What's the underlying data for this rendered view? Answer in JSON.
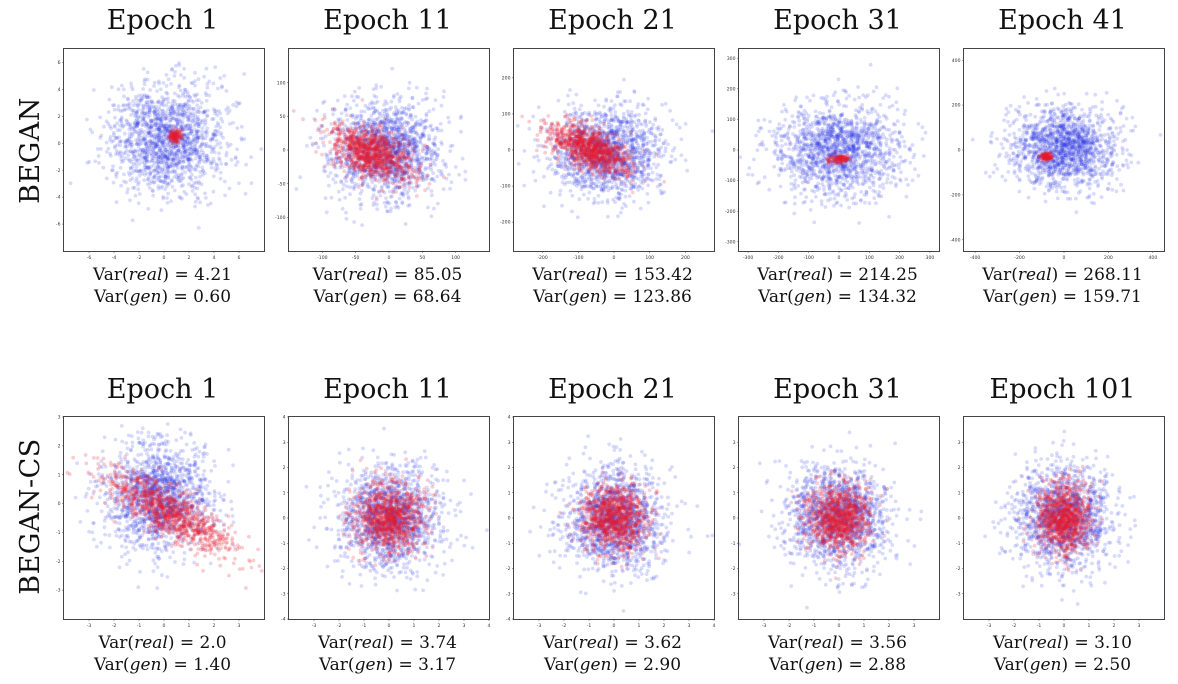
{
  "figure": {
    "rows": [
      {
        "label": "BEGAN"
      },
      {
        "label": "BEGAN-CS"
      }
    ]
  },
  "chart_data": [
    {
      "type": "scatter",
      "row": "BEGAN",
      "title": "Epoch 1",
      "var_real": "4.21",
      "var_gen": "0.60",
      "xlim": [
        -8,
        8
      ],
      "ylim": [
        -8,
        7
      ],
      "xticks": [
        -6,
        -4,
        -2,
        0,
        2,
        4,
        6
      ],
      "yticks": [
        -6,
        -4,
        -2,
        0,
        2,
        4,
        6
      ],
      "series": [
        {
          "color": "#2a35e6",
          "center": [
            0.2,
            0.3
          ],
          "spread": [
            2.3,
            2.0
          ]
        },
        {
          "color": "#e81c2c",
          "center": [
            0.9,
            0.5
          ],
          "spread": [
            0.25,
            0.25
          ]
        }
      ]
    },
    {
      "type": "scatter",
      "row": "BEGAN",
      "title": "Epoch 11",
      "var_real": "85.05",
      "var_gen": "68.64",
      "xlim": [
        -150,
        150
      ],
      "ylim": [
        -150,
        150
      ],
      "xticks": [
        -100,
        -50,
        0,
        50,
        100
      ],
      "yticks": [
        -100,
        -50,
        0,
        50,
        100
      ],
      "series": [
        {
          "color": "#2a35e6",
          "center": [
            -5,
            0
          ],
          "spread": [
            42,
            36
          ]
        },
        {
          "color": "#e81c2c",
          "center": [
            -25,
            -5
          ],
          "spread": [
            30,
            18
          ],
          "tilt": -0.3
        }
      ]
    },
    {
      "type": "scatter",
      "row": "BEGAN",
      "title": "Epoch 21",
      "var_real": "153.42",
      "var_gen": "123.86",
      "xlim": [
        -280,
        280
      ],
      "ylim": [
        -280,
        280
      ],
      "xticks": [
        -200,
        -100,
        0,
        100,
        200
      ],
      "yticks": [
        -200,
        -100,
        0,
        100,
        200
      ],
      "series": [
        {
          "color": "#2a35e6",
          "center": [
            -20,
            -5
          ],
          "spread": [
            80,
            60
          ]
        },
        {
          "color": "#e81c2c",
          "center": [
            -70,
            5
          ],
          "spread": [
            55,
            28
          ],
          "tilt": -0.35
        }
      ]
    },
    {
      "type": "scatter",
      "row": "BEGAN",
      "title": "Epoch 31",
      "var_real": "214.25",
      "var_gen": "134.32",
      "xlim": [
        -330,
        330
      ],
      "ylim": [
        -330,
        330
      ],
      "xticks": [
        -300,
        -200,
        -100,
        0,
        100,
        200,
        300
      ],
      "yticks": [
        -300,
        -200,
        -100,
        0,
        100,
        200,
        300
      ],
      "series": [
        {
          "color": "#2a35e6",
          "center": [
            0,
            0
          ],
          "spread": [
            105,
            75
          ]
        },
        {
          "color": "#e81c2c",
          "center": [
            0,
            -30
          ],
          "spread": [
            18,
            8
          ]
        }
      ]
    },
    {
      "type": "scatter",
      "row": "BEGAN",
      "title": "Epoch 41",
      "var_real": "268.11",
      "var_gen": "159.71",
      "xlim": [
        -450,
        450
      ],
      "ylim": [
        -450,
        450
      ],
      "xticks": [
        -400,
        -200,
        0,
        200,
        400
      ],
      "yticks": [
        -400,
        -200,
        0,
        200,
        400
      ],
      "series": [
        {
          "color": "#2a35e6",
          "center": [
            0,
            10
          ],
          "spread": [
            120,
            85
          ]
        },
        {
          "color": "#e81c2c",
          "center": [
            -80,
            -30
          ],
          "spread": [
            12,
            8
          ]
        }
      ]
    },
    {
      "type": "scatter",
      "row": "BEGAN-CS",
      "title": "Epoch 1",
      "var_real": "2.0",
      "var_gen": "1.40",
      "xlim": [
        -4,
        4
      ],
      "ylim": [
        -4,
        3
      ],
      "xticks": [
        -3,
        -2,
        -1,
        0,
        1,
        2,
        3
      ],
      "yticks": [
        -3,
        -2,
        -1,
        0,
        1,
        2,
        3
      ],
      "series": [
        {
          "color": "#2a35e6",
          "center": [
            -0.3,
            0.2
          ],
          "spread": [
            1.1,
            0.9
          ]
        },
        {
          "color": "#e81c2c",
          "center": [
            0.2,
            -0.3
          ],
          "spread": [
            1.3,
            0.45
          ],
          "tilt": -0.45
        }
      ]
    },
    {
      "type": "scatter",
      "row": "BEGAN-CS",
      "title": "Epoch 11",
      "var_real": "3.74",
      "var_gen": "3.17",
      "xlim": [
        -4,
        4
      ],
      "ylim": [
        -4,
        4
      ],
      "xticks": [
        -3,
        -2,
        -1,
        0,
        1,
        2,
        3,
        4
      ],
      "yticks": [
        -4,
        -3,
        -2,
        -1,
        0,
        1,
        2,
        3,
        4
      ],
      "series": [
        {
          "color": "#2a35e6",
          "center": [
            0,
            0
          ],
          "spread": [
            1.0,
            1.0
          ]
        },
        {
          "color": "#e81c2c",
          "center": [
            0,
            0
          ],
          "spread": [
            0.7,
            0.7
          ]
        }
      ]
    },
    {
      "type": "scatter",
      "row": "BEGAN-CS",
      "title": "Epoch 21",
      "var_real": "3.62",
      "var_gen": "2.90",
      "xlim": [
        -4,
        4
      ],
      "ylim": [
        -4,
        4
      ],
      "xticks": [
        -3,
        -2,
        -1,
        0,
        1,
        2,
        3,
        4
      ],
      "yticks": [
        -4,
        -3,
        -2,
        -1,
        0,
        1,
        2,
        3,
        4
      ],
      "series": [
        {
          "color": "#2a35e6",
          "center": [
            0,
            0
          ],
          "spread": [
            1.0,
            1.0
          ]
        },
        {
          "color": "#e81c2c",
          "center": [
            0,
            0
          ],
          "spread": [
            0.65,
            0.65
          ]
        }
      ]
    },
    {
      "type": "scatter",
      "row": "BEGAN-CS",
      "title": "Epoch 31",
      "var_real": "3.56",
      "var_gen": "2.88",
      "xlim": [
        -4,
        4
      ],
      "ylim": [
        -4,
        4
      ],
      "xticks": [
        -3,
        -2,
        -1,
        0,
        1,
        2,
        3
      ],
      "yticks": [
        -3,
        -2,
        -1,
        0,
        1,
        2,
        3
      ],
      "series": [
        {
          "color": "#2a35e6",
          "center": [
            0,
            0
          ],
          "spread": [
            1.0,
            1.0
          ]
        },
        {
          "color": "#e81c2c",
          "center": [
            0,
            0
          ],
          "spread": [
            0.65,
            0.65
          ]
        }
      ]
    },
    {
      "type": "scatter",
      "row": "BEGAN-CS",
      "title": "Epoch 101",
      "var_real": "3.10",
      "var_gen": "2.50",
      "xlim": [
        -4,
        4
      ],
      "ylim": [
        -4,
        4
      ],
      "xticks": [
        -3,
        -2,
        -1,
        0,
        1,
        2,
        3
      ],
      "yticks": [
        -3,
        -2,
        -1,
        0,
        1,
        2,
        3
      ],
      "series": [
        {
          "color": "#2a35e6",
          "center": [
            0,
            0
          ],
          "spread": [
            1.0,
            1.0
          ]
        },
        {
          "color": "#e81c2c",
          "center": [
            0,
            0
          ],
          "spread": [
            0.55,
            0.7
          ]
        }
      ]
    }
  ]
}
